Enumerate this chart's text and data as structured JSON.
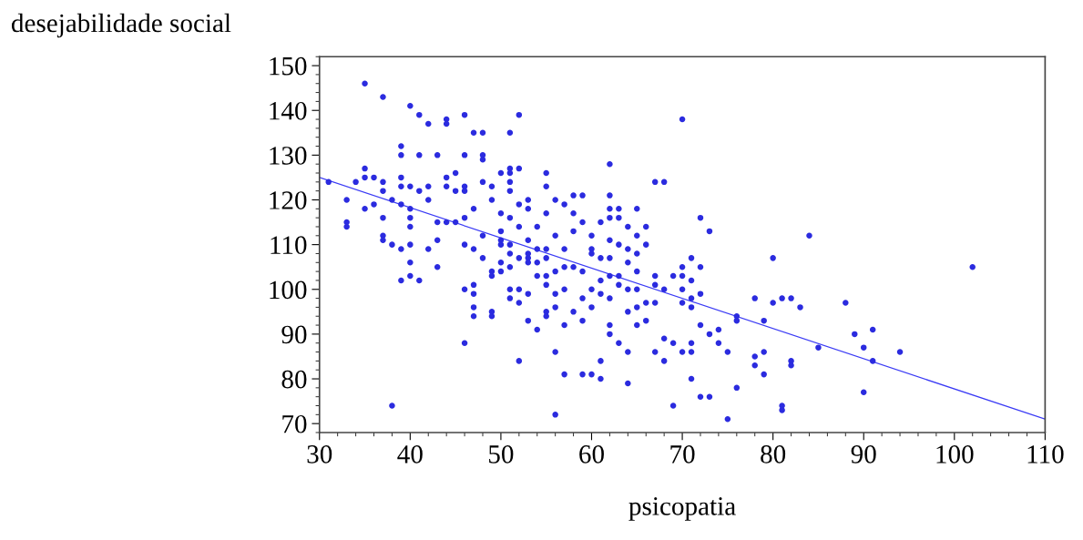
{
  "chart_data": {
    "type": "scatter",
    "xlabel": "psicopatia",
    "ylabel": "desejabilidade social",
    "xlim": [
      30,
      110
    ],
    "ylim": [
      68,
      152
    ],
    "xticks": [
      30,
      40,
      50,
      60,
      70,
      80,
      90,
      100,
      110
    ],
    "yticks": [
      70,
      80,
      90,
      100,
      110,
      120,
      130,
      140,
      150
    ],
    "grid": false,
    "series": [
      {
        "color": "#2b2bdf",
        "marker": "circle",
        "x": [
          31,
          33,
          33,
          33,
          34,
          35,
          35,
          35,
          35,
          36,
          36,
          37,
          37,
          37,
          37,
          37,
          37,
          38,
          38,
          38,
          39,
          39,
          39,
          39,
          39,
          39,
          39,
          40,
          40,
          40,
          40,
          40,
          40,
          40,
          40,
          41,
          41,
          41,
          41,
          42,
          42,
          42,
          42,
          43,
          43,
          43,
          43,
          44,
          44,
          44,
          44,
          44,
          45,
          45,
          45,
          46,
          46,
          46,
          46,
          46,
          46,
          46,
          46,
          47,
          47,
          47,
          47,
          47,
          47,
          47,
          48,
          48,
          48,
          48,
          48,
          48,
          49,
          49,
          49,
          49,
          49,
          49,
          50,
          50,
          50,
          50,
          50,
          50,
          50,
          51,
          51,
          51,
          51,
          51,
          51,
          51,
          51,
          51,
          51,
          51,
          52,
          52,
          52,
          52,
          52,
          52,
          52,
          52,
          53,
          53,
          53,
          53,
          53,
          53,
          53,
          53,
          54,
          54,
          54,
          54,
          54,
          55,
          55,
          55,
          55,
          55,
          55,
          55,
          55,
          55,
          56,
          56,
          56,
          56,
          56,
          56,
          56,
          57,
          57,
          57,
          57,
          57,
          57,
          58,
          58,
          58,
          58,
          58,
          59,
          59,
          59,
          59,
          59,
          59,
          60,
          60,
          60,
          60,
          60,
          60,
          61,
          61,
          61,
          61,
          61,
          61,
          62,
          62,
          62,
          62,
          62,
          62,
          62,
          62,
          62,
          62,
          63,
          63,
          63,
          63,
          63,
          63,
          64,
          64,
          64,
          64,
          64,
          64,
          64,
          65,
          65,
          65,
          65,
          65,
          65,
          65,
          66,
          66,
          66,
          66,
          67,
          67,
          67,
          67,
          67,
          68,
          68,
          68,
          68,
          69,
          69,
          69,
          70,
          70,
          70,
          70,
          70,
          70,
          71,
          71,
          71,
          71,
          71,
          71,
          71,
          72,
          72,
          72,
          72,
          72,
          73,
          73,
          73,
          74,
          74,
          75,
          75,
          76,
          76,
          76,
          78,
          78,
          78,
          79,
          79,
          79,
          80,
          80,
          81,
          81,
          81,
          82,
          82,
          82,
          83,
          84,
          85,
          88,
          89,
          90,
          90,
          91,
          91,
          94,
          102
        ],
        "values": [
          124,
          120,
          115,
          114,
          124,
          146,
          127,
          125,
          118,
          125,
          119,
          143,
          124,
          122,
          112,
          111,
          116,
          110,
          74,
          120,
          132,
          130,
          125,
          123,
          119,
          109,
          102,
          141,
          123,
          118,
          116,
          114,
          110,
          106,
          103,
          139,
          130,
          122,
          102,
          137,
          123,
          120,
          109,
          130,
          115,
          111,
          105,
          138,
          137,
          125,
          123,
          115,
          126,
          122,
          115,
          139,
          130,
          123,
          122,
          116,
          110,
          100,
          88,
          135,
          118,
          109,
          101,
          99,
          96,
          94,
          135,
          130,
          129,
          124,
          112,
          107,
          123,
          120,
          104,
          103,
          95,
          94,
          126,
          117,
          113,
          111,
          110,
          106,
          104,
          135,
          127,
          126,
          124,
          122,
          116,
          110,
          108,
          105,
          100,
          98,
          139,
          127,
          119,
          114,
          107,
          100,
          97,
          84,
          120,
          118,
          111,
          108,
          107,
          106,
          99,
          93,
          114,
          109,
          106,
          103,
          91,
          126,
          123,
          117,
          109,
          107,
          103,
          101,
          95,
          94,
          120,
          112,
          104,
          99,
          96,
          86,
          72,
          119,
          109,
          105,
          100,
          92,
          81,
          121,
          117,
          113,
          105,
          95,
          121,
          115,
          104,
          98,
          93,
          81,
          112,
          109,
          108,
          100,
          96,
          81,
          115,
          107,
          102,
          99,
          84,
          80,
          128,
          121,
          118,
          116,
          111,
          107,
          103,
          98,
          92,
          90,
          118,
          116,
          110,
          103,
          101,
          88,
          114,
          109,
          106,
          100,
          95,
          86,
          79,
          118,
          112,
          108,
          104,
          100,
          96,
          92,
          114,
          110,
          97,
          93,
          124,
          103,
          101,
          97,
          86,
          124,
          100,
          89,
          84,
          103,
          88,
          74,
          138,
          105,
          103,
          100,
          97,
          86,
          107,
          102,
          98,
          96,
          88,
          86,
          80,
          116,
          105,
          99,
          92,
          76,
          113,
          90,
          76,
          91,
          88,
          86,
          71,
          94,
          93,
          78,
          98,
          85,
          83,
          93,
          86,
          81,
          107,
          97,
          98,
          74,
          73,
          98,
          84,
          83,
          96,
          112,
          87,
          97,
          90,
          87,
          77,
          91,
          84,
          86,
          105
        ]
      },
      {
        "type": "line",
        "color": "#3a3af5",
        "marker": "none",
        "line_style": "solid",
        "x": [
          30,
          110
        ],
        "values": [
          125,
          71
        ]
      }
    ]
  }
}
